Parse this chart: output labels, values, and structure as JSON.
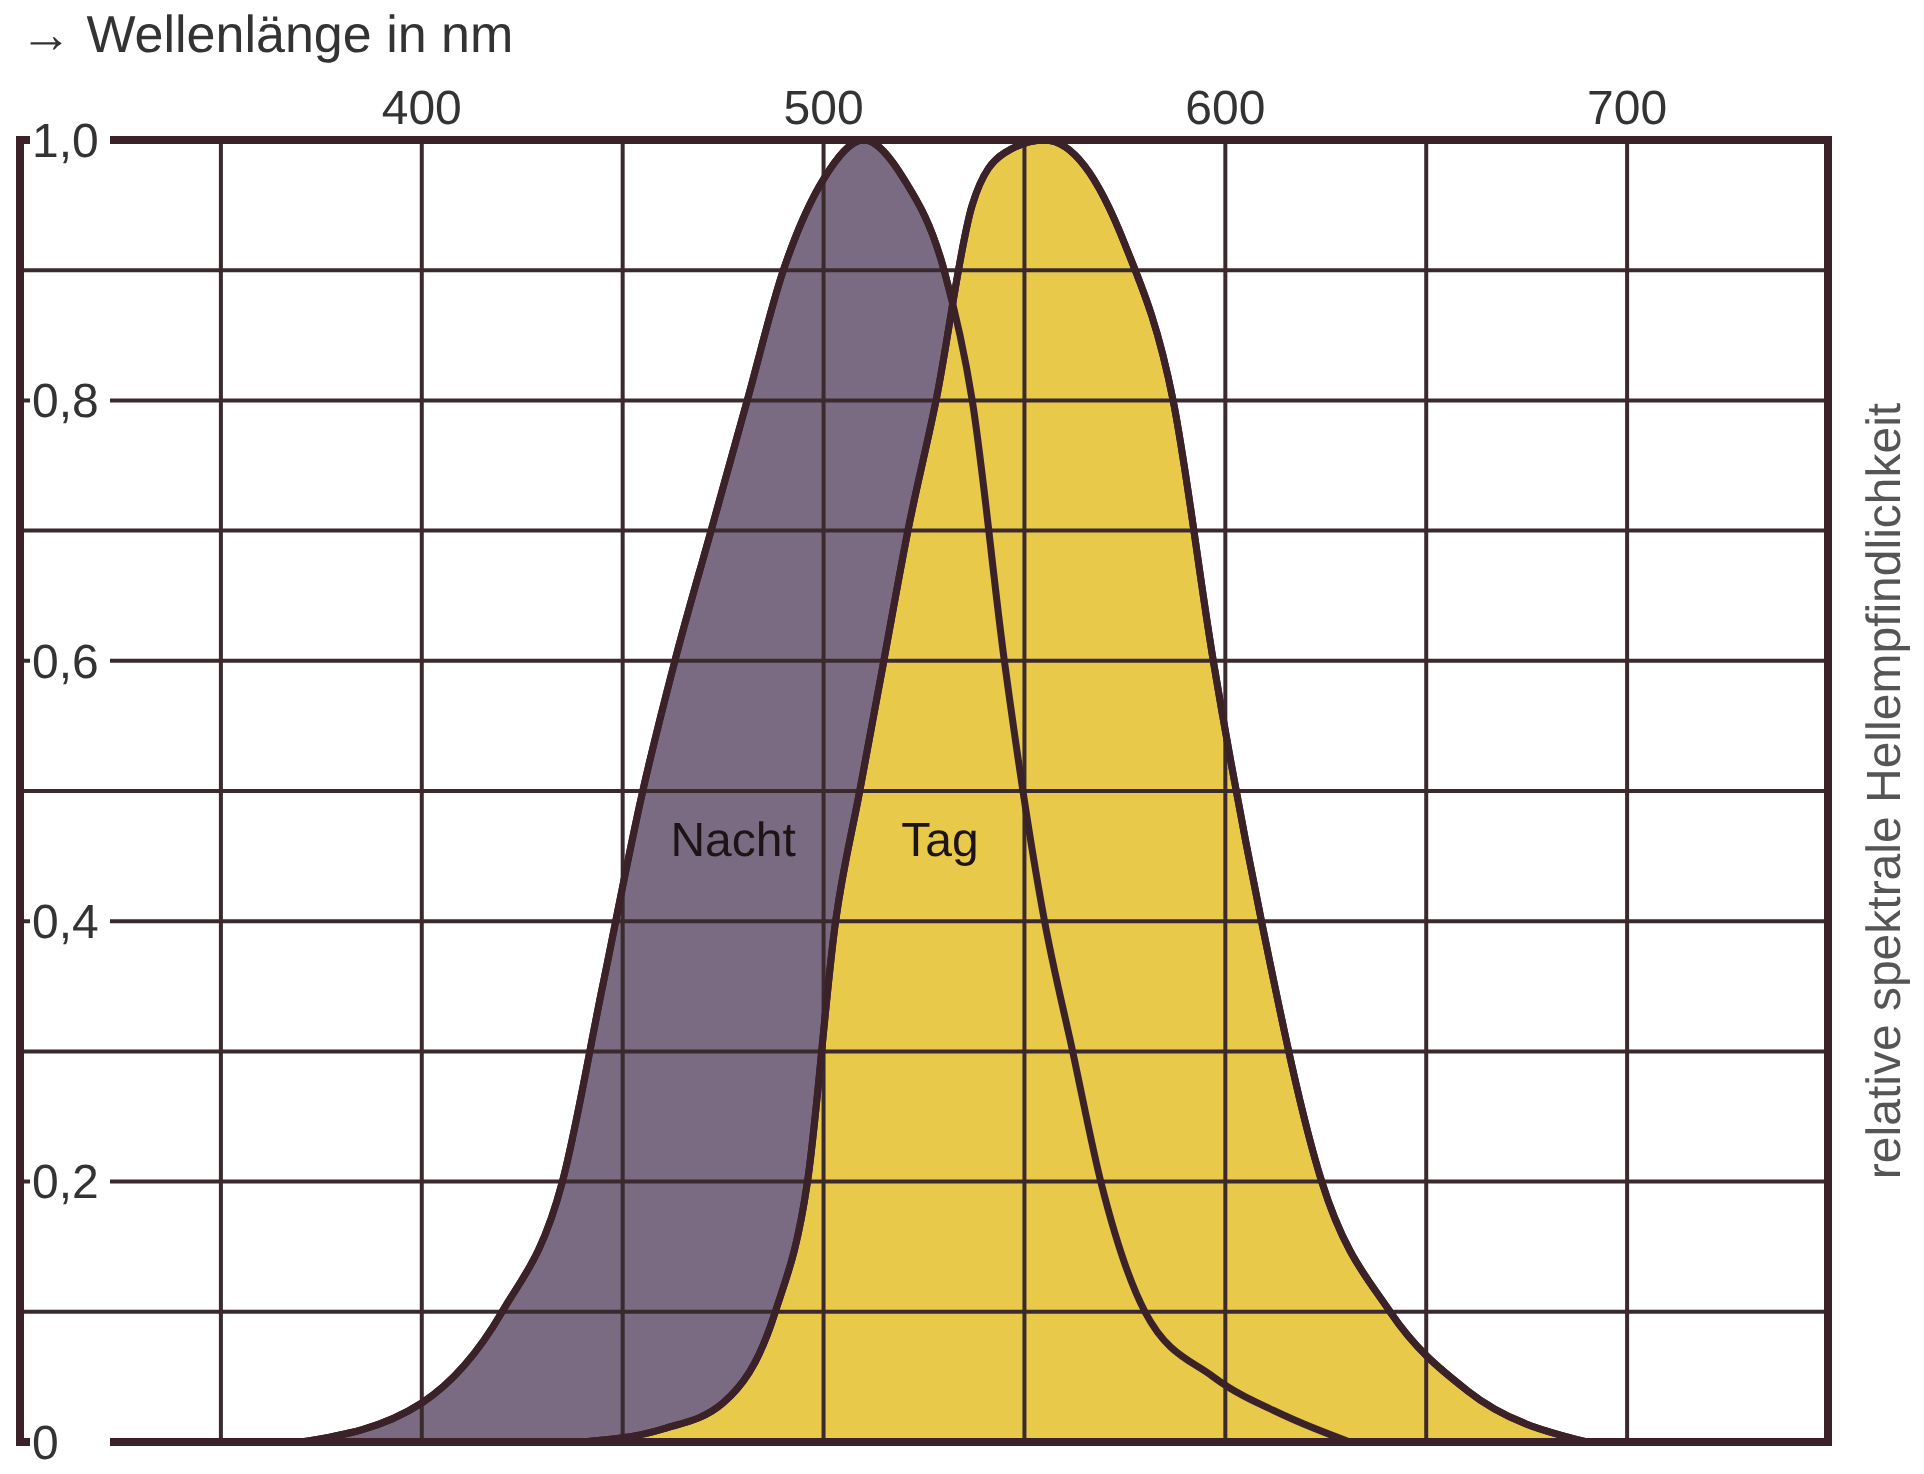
{
  "chart_data": {
    "type": "area",
    "xlabel": "→ Wellenlänge in nm",
    "ylabel": "relative spektrale Hellempfindlichkeit",
    "xlim": [
      300,
      750
    ],
    "ylim": [
      0,
      1
    ],
    "xticks": [
      {
        "value": 350,
        "label": null
      },
      400,
      {
        "value": 450,
        "label": null
      },
      500,
      {
        "value": 550,
        "label": null
      },
      600,
      {
        "value": 650,
        "label": null
      },
      700
    ],
    "yticks": [
      {
        "value": 0,
        "label": "0"
      },
      {
        "value": 0.1,
        "label": null
      },
      {
        "value": 0.2,
        "label": "0,2"
      },
      {
        "value": 0.3,
        "label": null
      },
      {
        "value": 0.4,
        "label": "0,4"
      },
      {
        "value": 0.5,
        "label": null
      },
      {
        "value": 0.6,
        "label": "0,6"
      },
      {
        "value": 0.7,
        "label": null
      },
      {
        "value": 0.8,
        "label": "0,8"
      },
      {
        "value": 0.9,
        "label": null
      },
      {
        "value": 1,
        "label": "1,0"
      }
    ],
    "grid": true,
    "series": [
      {
        "name": "Nacht",
        "color": "#7b6b82",
        "x": [
          370,
          400,
          420,
          435,
          445,
          455,
          463,
          472,
          481,
          490,
          500,
          510,
          520,
          530,
          537,
          545,
          555,
          562,
          569,
          580,
          597,
          615,
          631
        ],
        "values": [
          0,
          0.03,
          0.1,
          0.2,
          0.35,
          0.5,
          0.6,
          0.7,
          0.8,
          0.9,
          0.97,
          1,
          0.97,
          0.9,
          0.8,
          0.6,
          0.4,
          0.3,
          0.2,
          0.1,
          0.05,
          0.02,
          0
        ]
      },
      {
        "name": "Tag",
        "color": "#e9c94a",
        "x": [
          440,
          460,
          475,
          488,
          496,
          503,
          509,
          515,
          521,
          528,
          537,
          545,
          555,
          565,
          575,
          587,
          597,
          609,
          624,
          641,
          660,
          690
        ],
        "values": [
          0,
          0.01,
          0.03,
          0.1,
          0.2,
          0.4,
          0.5,
          0.6,
          0.7,
          0.8,
          0.95,
          0.99,
          1,
          0.98,
          0.92,
          0.8,
          0.6,
          0.4,
          0.2,
          0.1,
          0.04,
          0
        ]
      }
    ]
  }
}
